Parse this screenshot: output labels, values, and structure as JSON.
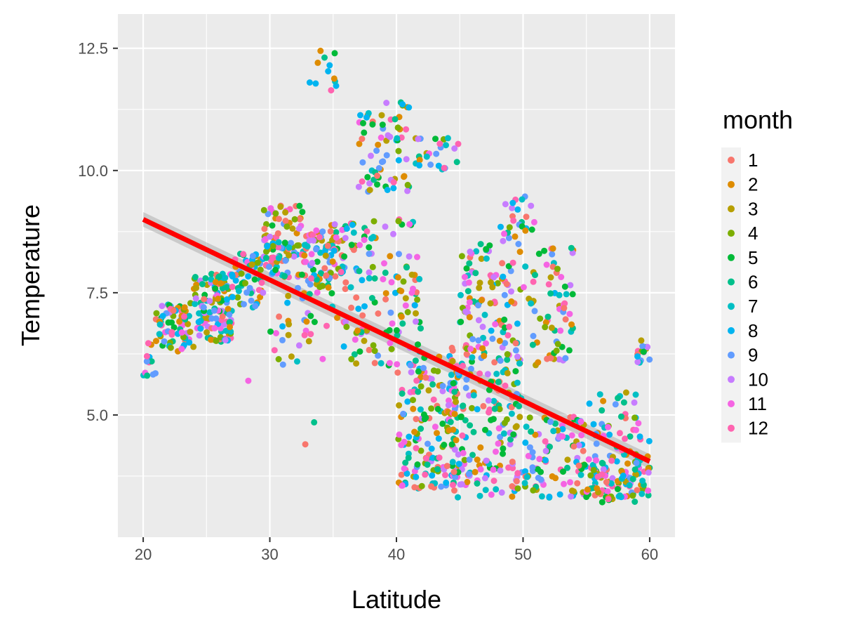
{
  "chart_data": {
    "type": "scatter",
    "title": "",
    "xlabel": "Latitude",
    "ylabel": "Temperature",
    "xlim": [
      18,
      62
    ],
    "ylim": [
      2.5,
      13.2
    ],
    "x_ticks": [
      20,
      30,
      40,
      50,
      60
    ],
    "x_tick_labels": [
      "20",
      "30",
      "40",
      "50",
      "60"
    ],
    "y_ticks": [
      5.0,
      7.5,
      10.0,
      12.5
    ],
    "y_tick_labels": [
      "5.0",
      "7.5",
      "10.0",
      "12.5"
    ],
    "grid": true,
    "legend": {
      "title": "month",
      "placement": "right",
      "entries": [
        {
          "label": "1",
          "color": "#F8766D"
        },
        {
          "label": "2",
          "color": "#DE8C00"
        },
        {
          "label": "3",
          "color": "#B79F00"
        },
        {
          "label": "4",
          "color": "#7CAE00"
        },
        {
          "label": "5",
          "color": "#00BA38"
        },
        {
          "label": "6",
          "color": "#00C08B"
        },
        {
          "label": "7",
          "color": "#00BFC4"
        },
        {
          "label": "8",
          "color": "#00B4F0"
        },
        {
          "label": "9",
          "color": "#619CFF"
        },
        {
          "label": "10",
          "color": "#C77CFF"
        },
        {
          "label": "11",
          "color": "#F564E3"
        },
        {
          "label": "12",
          "color": "#FF64B0"
        }
      ]
    },
    "trend_line": {
      "x": [
        20,
        60
      ],
      "y": [
        9.0,
        4.05
      ],
      "color": "#FF0000",
      "band": [
        0.15,
        0.15
      ]
    },
    "clusters": [
      {
        "lat": [
          20,
          21
        ],
        "temp": [
          5.8,
          6.5
        ],
        "n": 12
      },
      {
        "lat": [
          21,
          24
        ],
        "temp": [
          6.3,
          7.3
        ],
        "n": 70
      },
      {
        "lat": [
          24,
          27
        ],
        "temp": [
          6.5,
          7.9
        ],
        "n": 130
      },
      {
        "lat": [
          27,
          29.5
        ],
        "temp": [
          7.2,
          8.3
        ],
        "n": 60
      },
      {
        "lat": [
          29.5,
          33
        ],
        "temp": [
          7.8,
          9.3
        ],
        "n": 110
      },
      {
        "lat": [
          33,
          36
        ],
        "temp": [
          7.6,
          8.9
        ],
        "n": 90
      },
      {
        "lat": [
          30,
          36
        ],
        "temp": [
          6.0,
          7.6
        ],
        "n": 40
      },
      {
        "lat": [
          33,
          35.5
        ],
        "temp": [
          11.6,
          12.6
        ],
        "n": 12
      },
      {
        "lat": [
          36,
          42
        ],
        "temp": [
          6.0,
          9.0
        ],
        "n": 120
      },
      {
        "lat": [
          37,
          41
        ],
        "temp": [
          9.5,
          11.5
        ],
        "n": 70
      },
      {
        "lat": [
          41.5,
          45
        ],
        "temp": [
          10.0,
          10.7
        ],
        "n": 25
      },
      {
        "lat": [
          40,
          45
        ],
        "temp": [
          3.5,
          6.2
        ],
        "n": 160
      },
      {
        "lat": [
          44,
          50
        ],
        "temp": [
          3.3,
          6.5
        ],
        "n": 200
      },
      {
        "lat": [
          45,
          50
        ],
        "temp": [
          6.0,
          8.5
        ],
        "n": 100
      },
      {
        "lat": [
          48,
          51
        ],
        "temp": [
          8.5,
          9.5
        ],
        "n": 25
      },
      {
        "lat": [
          50,
          54
        ],
        "temp": [
          6.0,
          8.5
        ],
        "n": 70
      },
      {
        "lat": [
          50,
          55
        ],
        "temp": [
          3.3,
          5.0
        ],
        "n": 100
      },
      {
        "lat": [
          55,
          60
        ],
        "temp": [
          3.2,
          4.2
        ],
        "n": 120
      },
      {
        "lat": [
          55,
          60
        ],
        "temp": [
          4.2,
          5.5
        ],
        "n": 40
      },
      {
        "lat": [
          59,
          60
        ],
        "temp": [
          6.0,
          6.6
        ],
        "n": 15
      }
    ],
    "outliers": [
      {
        "lat": 32.8,
        "temp": 4.4
      },
      {
        "lat": 33.5,
        "temp": 4.85
      },
      {
        "lat": 28.3,
        "temp": 5.7
      }
    ]
  }
}
